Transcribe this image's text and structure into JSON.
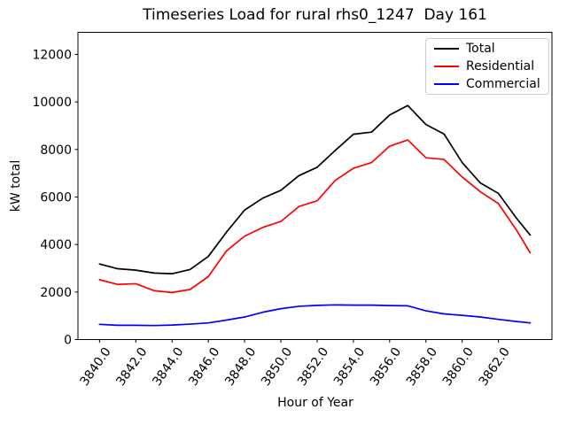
{
  "chart_data": {
    "type": "line",
    "title": "Timeseries Load for rural rhs0_1247  Day 161",
    "xlabel": "Hour of Year",
    "ylabel": "kW total",
    "xlim": [
      3838.81,
      3864.95
    ],
    "ylim": [
      0,
      12930
    ],
    "xticks": [
      3840,
      3842,
      3844,
      3846,
      3848,
      3850,
      3852,
      3854,
      3856,
      3858,
      3860,
      3862
    ],
    "xtick_labels": [
      "3840.0",
      "3842.0",
      "3844.0",
      "3846.0",
      "3848.0",
      "3850.0",
      "3852.0",
      "3854.0",
      "3856.0",
      "3858.0",
      "3860.0",
      "3862.0"
    ],
    "yticks": [
      0,
      2000,
      4000,
      6000,
      8000,
      10000,
      12000
    ],
    "ytick_labels": [
      "0",
      "2000",
      "4000",
      "6000",
      "8000",
      "10000",
      "12000"
    ],
    "grid": false,
    "legend_position": "upper right",
    "x": [
      3840,
      3841,
      3842,
      3843,
      3844,
      3845,
      3846,
      3847,
      3848,
      3849,
      3850,
      3851,
      3852,
      3853,
      3854,
      3855,
      3856,
      3857,
      3858,
      3859,
      3860,
      3861,
      3862,
      3863,
      3863.75
    ],
    "series": [
      {
        "name": "Total",
        "color": "#000000",
        "values": [
          3180,
          2980,
          2920,
          2800,
          2770,
          2950,
          3500,
          4520,
          5450,
          5950,
          6280,
          6900,
          7250,
          7960,
          8640,
          8730,
          9450,
          9850,
          9050,
          8650,
          7450,
          6590,
          6150,
          5100,
          4400
        ]
      },
      {
        "name": "Residential",
        "color": "#ff0000",
        "values": [
          2520,
          2320,
          2350,
          2060,
          1980,
          2110,
          2650,
          3730,
          4350,
          4720,
          4970,
          5600,
          5840,
          6700,
          7210,
          7450,
          8140,
          8400,
          7650,
          7580,
          6840,
          6220,
          5720,
          4600,
          3650
        ]
      },
      {
        "name": "Commercial",
        "color": "#0000ff",
        "values": [
          640,
          600,
          600,
          590,
          610,
          650,
          700,
          820,
          950,
          1150,
          1300,
          1400,
          1440,
          1460,
          1450,
          1450,
          1430,
          1420,
          1210,
          1080,
          1020,
          950,
          850,
          760,
          700
        ]
      }
    ]
  }
}
